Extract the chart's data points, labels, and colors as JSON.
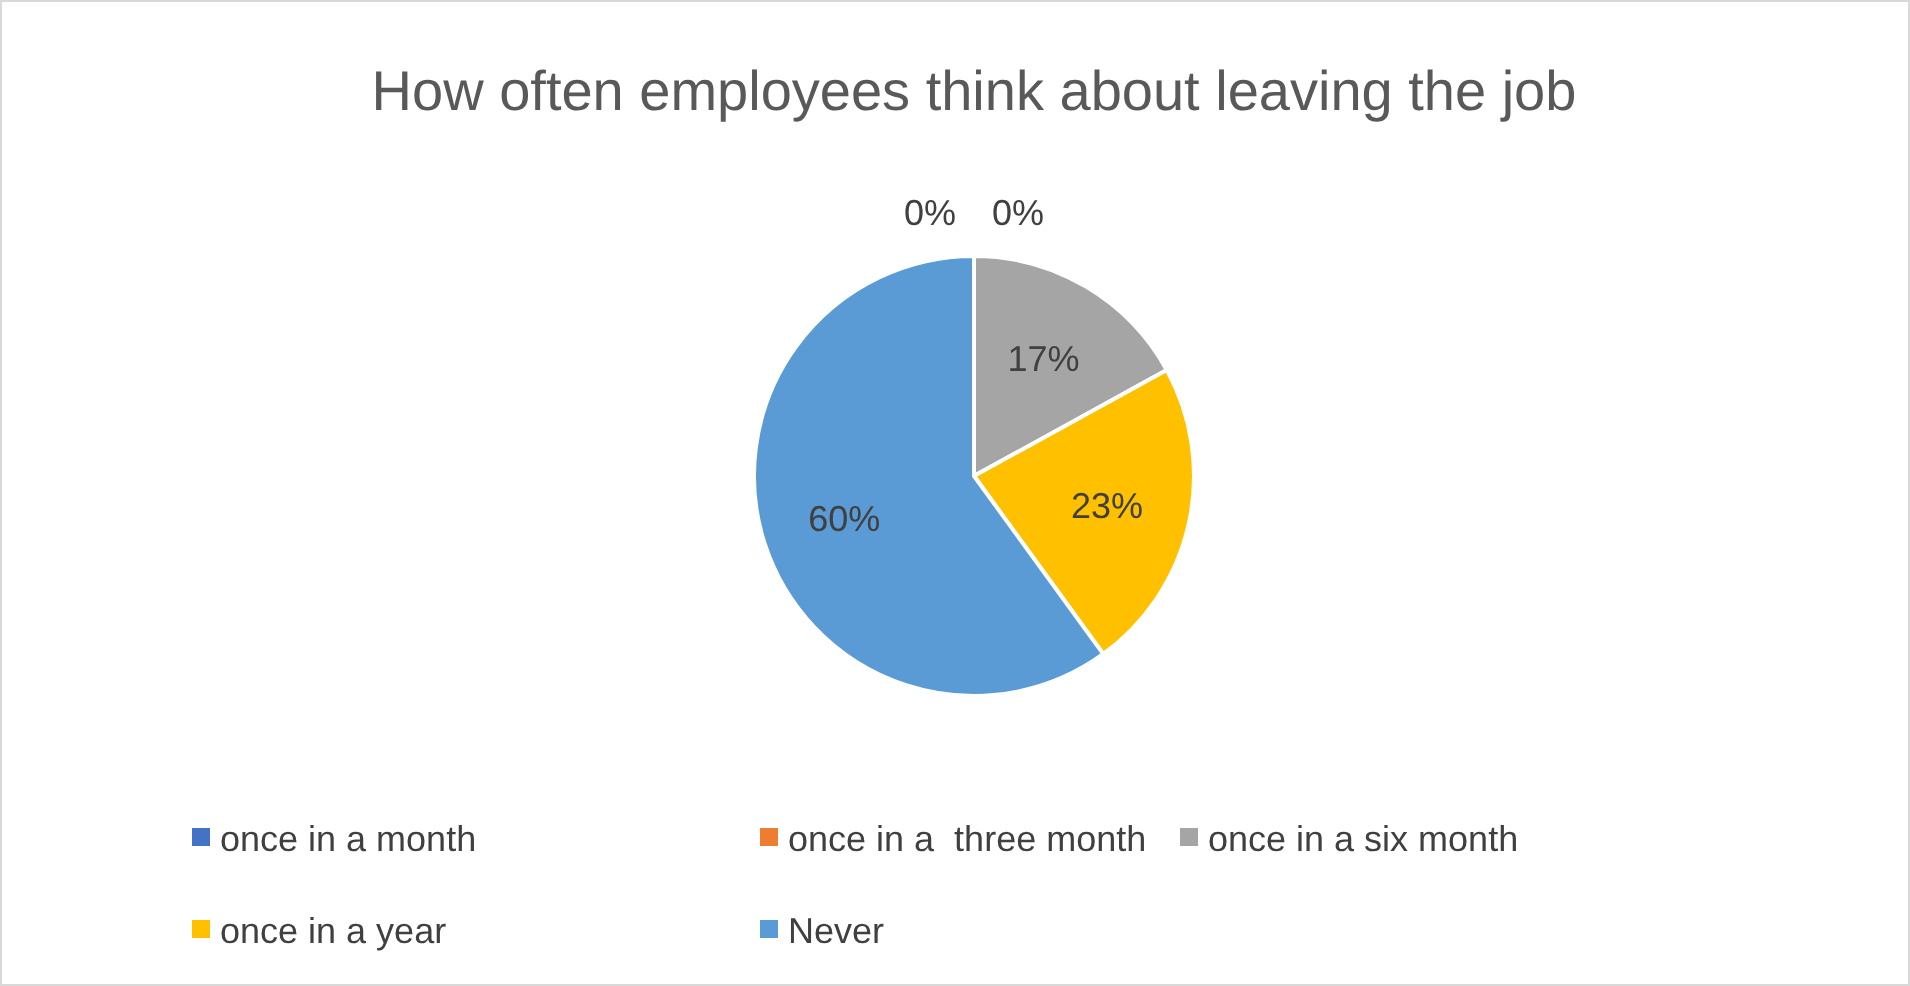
{
  "chart_data": {
    "type": "pie",
    "title": "How often employees think about leaving the job",
    "categories": [
      "once in a month",
      "once in a  three month",
      "once in a six month",
      "once in a year",
      "Never"
    ],
    "values": [
      0,
      0,
      17,
      23,
      60
    ],
    "colors": [
      "#4472c4",
      "#ed7d31",
      "#a5a5a5",
      "#ffc000",
      "#5b9bd5"
    ],
    "value_labels": [
      "0%",
      "0%",
      "17%",
      "23%",
      "60%"
    ],
    "legend": "bottom"
  }
}
